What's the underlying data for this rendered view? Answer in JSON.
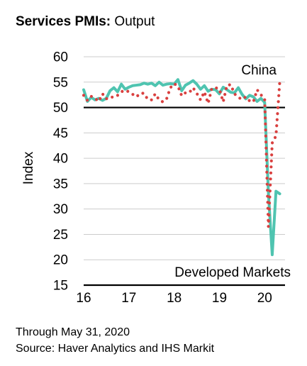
{
  "title_bold": "Services PMIs:",
  "title_rest": " Output",
  "footer": {
    "through": "Through May 31, 2020",
    "source": "Source: Haver Analytics and IHS Markit"
  },
  "chart_data": {
    "type": "line",
    "xlabel": "",
    "ylabel": "Index",
    "xlim": [
      2016.0,
      2020.45
    ],
    "ylim": [
      15,
      60
    ],
    "y_ticks": [
      15,
      20,
      25,
      30,
      35,
      40,
      45,
      50,
      55,
      60
    ],
    "x_ticks": [
      {
        "value": 2016,
        "label": "16"
      },
      {
        "value": 2017,
        "label": "17"
      },
      {
        "value": 2018,
        "label": "18"
      },
      {
        "value": 2019,
        "label": "19"
      },
      {
        "value": 2020,
        "label": "20"
      }
    ],
    "reference_line": 50,
    "grid": true,
    "series": [
      {
        "name": "China",
        "style": "dotted",
        "color": "#d9403f",
        "x": [
          2016.0,
          2016.083,
          2016.167,
          2016.25,
          2016.333,
          2016.417,
          2016.5,
          2016.583,
          2016.667,
          2016.75,
          2016.833,
          2016.917,
          2017.0,
          2017.083,
          2017.167,
          2017.25,
          2017.333,
          2017.417,
          2017.5,
          2017.583,
          2017.667,
          2017.75,
          2017.833,
          2017.917,
          2018.0,
          2018.083,
          2018.167,
          2018.25,
          2018.333,
          2018.417,
          2018.5,
          2018.583,
          2018.667,
          2018.75,
          2018.833,
          2018.917,
          2019.0,
          2019.083,
          2019.167,
          2019.25,
          2019.333,
          2019.417,
          2019.5,
          2019.583,
          2019.667,
          2019.75,
          2019.833,
          2019.917,
          2020.0,
          2020.083,
          2020.167,
          2020.25,
          2020.333
        ],
        "values": [
          52.4,
          51.4,
          52.2,
          51.8,
          51.2,
          52.7,
          51.7,
          52.1,
          52.0,
          52.4,
          53.1,
          53.4,
          53.1,
          52.6,
          52.1,
          52.8,
          52.8,
          51.6,
          51.5,
          52.7,
          51.5,
          51.1,
          51.7,
          53.9,
          54.7,
          54.2,
          52.3,
          52.9,
          52.9,
          53.9,
          52.8,
          51.5,
          53.1,
          50.8,
          53.8,
          53.9,
          53.6,
          51.1,
          54.4,
          54.5,
          52.7,
          52.0,
          51.6,
          52.1,
          51.3,
          51.1,
          53.5,
          52.5,
          51.8,
          26.5,
          43.0,
          44.4,
          55.0
        ]
      },
      {
        "name": "Developed Markets",
        "style": "solid",
        "color": "#4fc4b0",
        "x": [
          2016.0,
          2016.083,
          2016.167,
          2016.25,
          2016.333,
          2016.417,
          2016.5,
          2016.583,
          2016.667,
          2016.75,
          2016.833,
          2016.917,
          2017.0,
          2017.083,
          2017.167,
          2017.25,
          2017.333,
          2017.417,
          2017.5,
          2017.583,
          2017.667,
          2017.75,
          2017.833,
          2017.917,
          2018.0,
          2018.083,
          2018.167,
          2018.25,
          2018.333,
          2018.417,
          2018.5,
          2018.583,
          2018.667,
          2018.75,
          2018.833,
          2018.917,
          2019.0,
          2019.083,
          2019.167,
          2019.25,
          2019.333,
          2019.417,
          2019.5,
          2019.583,
          2019.667,
          2019.75,
          2019.833,
          2019.917,
          2020.0,
          2020.083,
          2020.167,
          2020.25,
          2020.333
        ],
        "values": [
          53.5,
          51.2,
          52.0,
          51.5,
          51.8,
          51.4,
          51.8,
          53.3,
          53.9,
          53.1,
          54.6,
          53.6,
          54.0,
          54.3,
          54.4,
          54.5,
          54.8,
          54.6,
          54.8,
          54.3,
          55.0,
          54.4,
          54.6,
          54.7,
          54.6,
          55.5,
          53.3,
          54.4,
          54.8,
          55.3,
          54.6,
          53.6,
          54.3,
          53.2,
          53.6,
          53.5,
          52.7,
          54.0,
          53.5,
          53.0,
          52.9,
          53.9,
          52.6,
          51.7,
          52.4,
          52.1,
          51.2,
          51.8,
          51.0,
          33.2,
          21.0,
          33.5,
          33.0
        ]
      }
    ],
    "annotations": [
      {
        "text": "China"
      },
      {
        "text": "Developed Markets"
      }
    ]
  }
}
